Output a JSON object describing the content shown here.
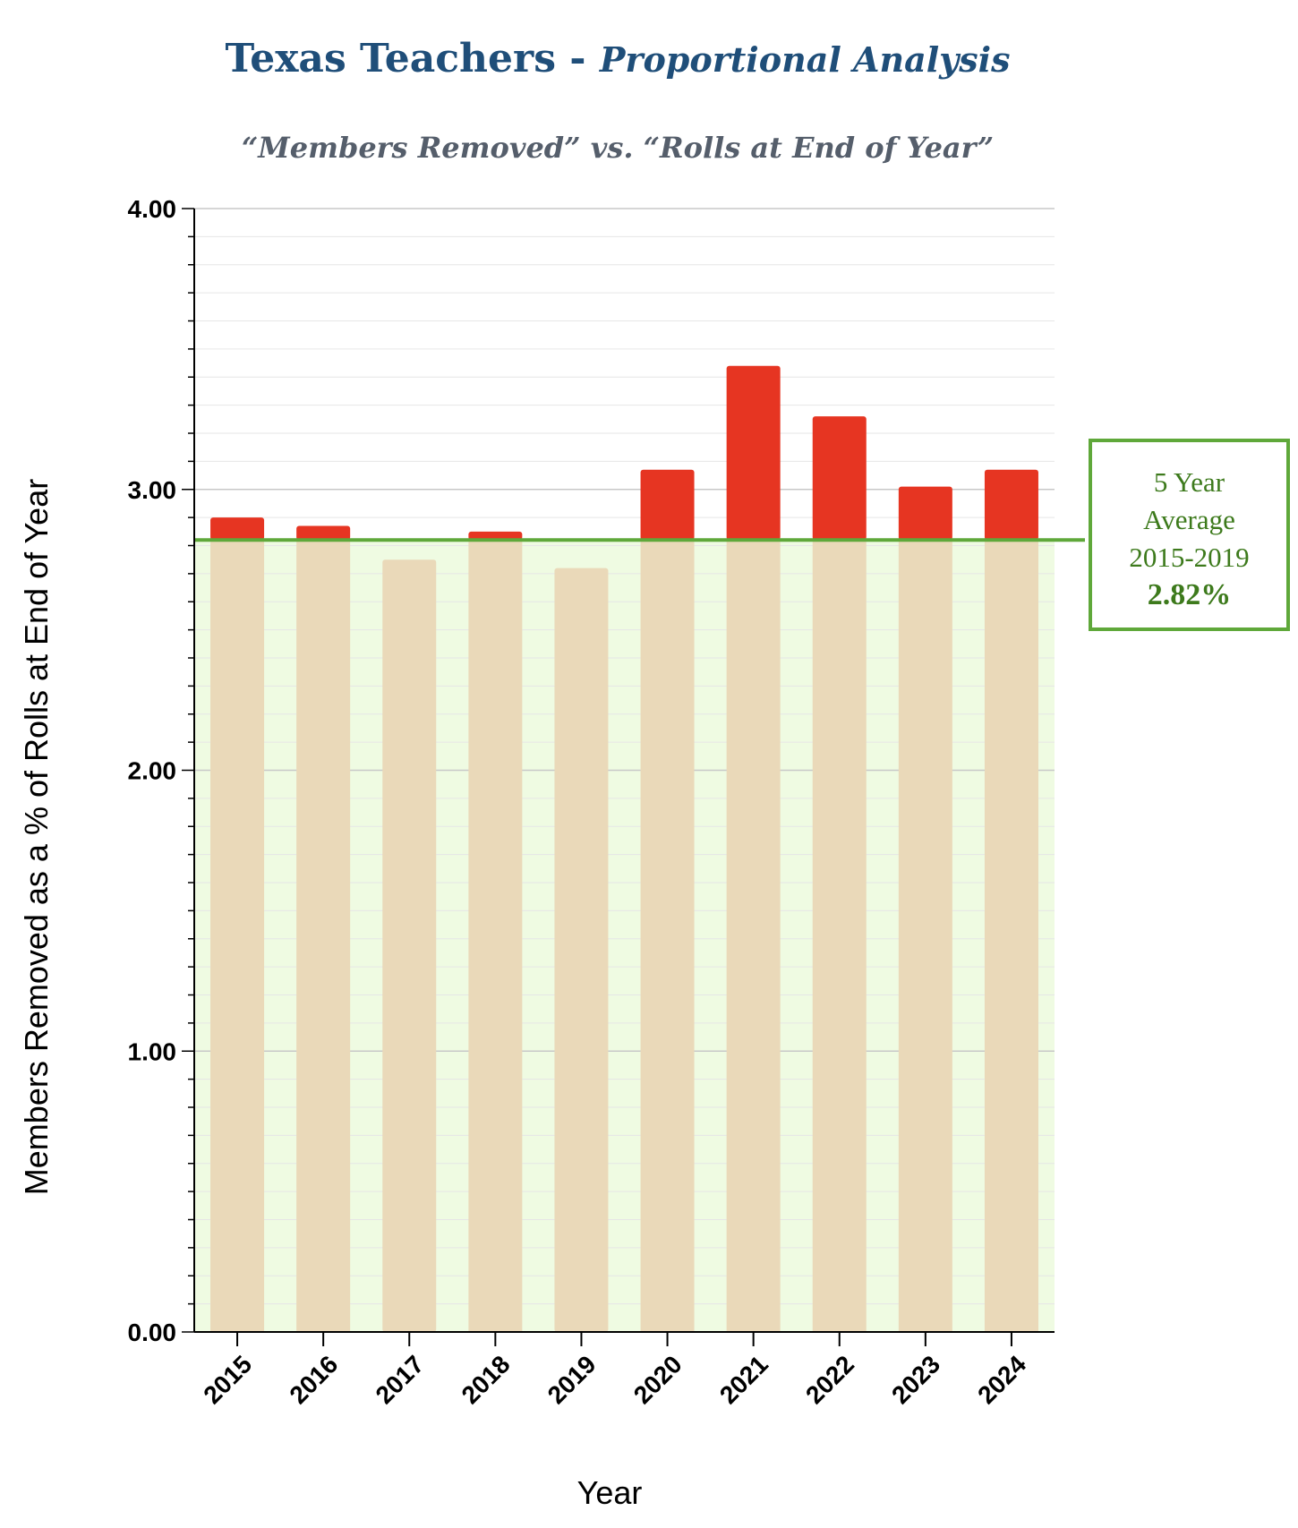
{
  "title": {
    "main": "Texas Teachers - ",
    "italic": "Proportional Analysis"
  },
  "subtitle": "“Members Removed” vs. “Rolls at End of Year”",
  "average_box": {
    "line1": "5 Year",
    "line2": "Average",
    "line3": "2015-2019",
    "value": "2.82%"
  },
  "chart_data": {
    "type": "bar",
    "categories": [
      "2015",
      "2016",
      "2017",
      "2018",
      "2019",
      "2020",
      "2021",
      "2022",
      "2023",
      "2024"
    ],
    "values": [
      2.9,
      2.87,
      2.75,
      2.85,
      2.72,
      3.07,
      3.44,
      3.26,
      3.01,
      3.07
    ],
    "reference_line": {
      "value": 2.82
    },
    "xlabel": "Year",
    "ylabel": "Members Removed as a % of Rolls at End of Year",
    "ylim": [
      0,
      4
    ],
    "y_ticks": [
      "0.00",
      "1.00",
      "2.00",
      "3.00",
      "4.00"
    ],
    "grid": true,
    "colors": {
      "above": "#e63522",
      "below": "#ead9b9",
      "band": "#effbe2",
      "line": "#5fa83a"
    }
  }
}
